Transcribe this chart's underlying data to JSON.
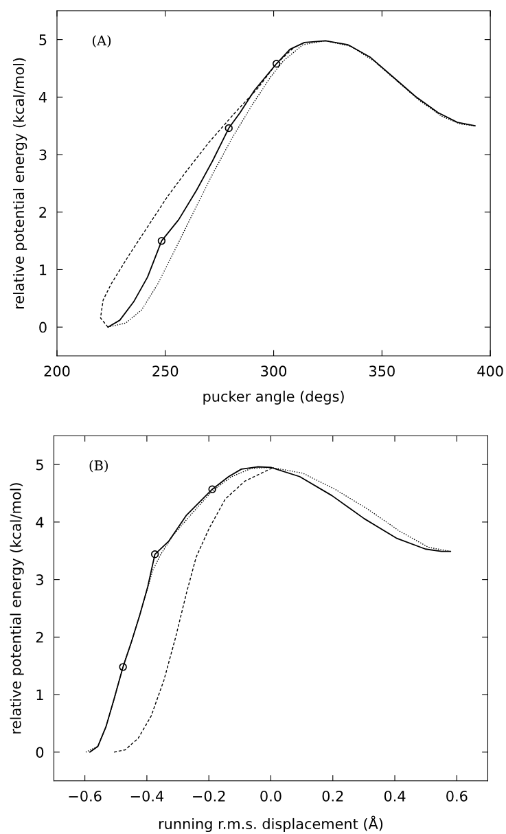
{
  "chart_data": [
    {
      "type": "line",
      "xlabel": "pucker angle (degs)",
      "ylabel": "relative potential energy (kcal/mol)",
      "annotations": [
        "(A)"
      ],
      "xlim": [
        200,
        400
      ],
      "ylim": [
        -0.5,
        5.5
      ],
      "xticks": [
        200,
        250,
        300,
        350,
        400
      ],
      "yticks": [
        0,
        1,
        2,
        3,
        4,
        5
      ],
      "grid": false,
      "series": [
        {
          "line_style": "solid",
          "color": "#000000",
          "x": [
            223.5,
            229,
            235.4,
            241.8,
            248.3,
            256.2,
            264.4,
            271.8,
            279.3,
            284.5,
            291.2,
            301.3,
            307.5,
            314.2,
            323.9,
            334.3,
            344.7,
            355.1,
            365.5,
            375.9,
            384.8,
            393.0
          ],
          "values": [
            0,
            0.12,
            0.44,
            0.87,
            1.5,
            1.87,
            2.38,
            2.89,
            3.46,
            3.73,
            4.12,
            4.58,
            4.83,
            4.95,
            4.98,
            4.91,
            4.69,
            4.35,
            4.01,
            3.73,
            3.56,
            3.5
          ]
        },
        {
          "line_style": "dashed",
          "color": "#000000",
          "x": [
            223.5,
            220.1,
            221.3,
            225,
            233.2,
            242.1,
            251,
            259.9,
            270.3,
            282.2,
            292.6,
            301.3,
            309
          ],
          "values": [
            0,
            0.16,
            0.47,
            0.75,
            1.25,
            1.76,
            2.27,
            2.72,
            3.22,
            3.73,
            4.15,
            4.58,
            4.85
          ]
        },
        {
          "line_style": "dotted",
          "color": "#000000",
          "x": [
            223.5,
            231.7,
            239.1,
            246.5,
            254,
            262.9,
            271.8,
            280.7,
            289.7,
            298.6,
            304.5,
            313.5,
            323.9,
            335.8,
            346.2,
            356.6,
            367,
            377.4,
            386.3,
            393
          ],
          "values": [
            0,
            0.07,
            0.3,
            0.75,
            1.31,
            1.99,
            2.66,
            3.28,
            3.84,
            4.35,
            4.63,
            4.91,
            4.98,
            4.88,
            4.63,
            4.29,
            3.95,
            3.67,
            3.53,
            3.5
          ]
        },
        {
          "type": "scatter",
          "marker": "circle",
          "color": "#000000",
          "x": [
            248.3,
            279.3,
            301.3
          ],
          "values": [
            1.5,
            3.46,
            4.58
          ]
        }
      ]
    },
    {
      "type": "line",
      "xlabel": "running r.m.s. displacement (Å)",
      "ylabel": "relative potential energy (kcal/mol)",
      "annotations": [
        "(B)"
      ],
      "xlim": [
        -0.7,
        0.7
      ],
      "ylim": [
        -0.5,
        5.5
      ],
      "xticks": [
        {
          "value": -0.6,
          "label": "−0.6"
        },
        {
          "value": -0.4,
          "label": "−0.4"
        },
        {
          "value": -0.2,
          "label": "−0.2"
        },
        {
          "value": 0,
          "label": "0.0"
        },
        {
          "value": 0.2,
          "label": "0.2"
        },
        {
          "value": 0.4,
          "label": "0.4"
        },
        {
          "value": 0.6,
          "label": "0.6"
        }
      ],
      "yticks": [
        0,
        1,
        2,
        3,
        4,
        5
      ],
      "grid": false,
      "series": [
        {
          "line_style": "solid",
          "color": "#000000",
          "x": [
            -0.584,
            -0.558,
            -0.532,
            -0.506,
            -0.477,
            -0.449,
            -0.423,
            -0.397,
            -0.374,
            -0.329,
            -0.272,
            -0.189,
            -0.136,
            -0.095,
            -0.043,
            0,
            0.093,
            0.197,
            0.301,
            0.405,
            0.499,
            0.551,
            0.58
          ],
          "values": [
            0,
            0.1,
            0.44,
            0.92,
            1.48,
            1.93,
            2.38,
            2.88,
            3.44,
            3.67,
            4.12,
            4.57,
            4.79,
            4.92,
            4.96,
            4.95,
            4.79,
            4.46,
            4.06,
            3.72,
            3.53,
            3.49,
            3.49
          ]
        },
        {
          "line_style": "dotted",
          "color": "#000000",
          "x": [
            -0.597,
            -0.558,
            -0.532,
            -0.506,
            -0.477,
            -0.449,
            -0.423,
            -0.381,
            -0.355,
            -0.314,
            -0.251,
            -0.189,
            -0.126,
            -0.064,
            0,
            0.103,
            0.207,
            0.311,
            0.416,
            0.509,
            0.58
          ],
          "values": [
            0,
            0.1,
            0.44,
            0.92,
            1.48,
            1.93,
            2.38,
            3.16,
            3.44,
            3.78,
            4.17,
            4.54,
            4.79,
            4.93,
            4.95,
            4.85,
            4.57,
            4.23,
            3.84,
            3.56,
            3.49
          ]
        },
        {
          "line_style": "dashed",
          "color": "#000000",
          "x": [
            -0.506,
            -0.47,
            -0.428,
            -0.386,
            -0.345,
            -0.308,
            -0.272,
            -0.241,
            -0.199,
            -0.147,
            -0.084,
            -0.011,
            0.009
          ],
          "values": [
            0,
            0.04,
            0.24,
            0.63,
            1.25,
            1.98,
            2.77,
            3.39,
            3.89,
            4.4,
            4.71,
            4.9,
            4.95
          ]
        },
        {
          "type": "scatter",
          "marker": "circle",
          "color": "#000000",
          "x": [
            -0.477,
            -0.374,
            -0.189
          ],
          "values": [
            1.48,
            3.44,
            4.57
          ]
        }
      ]
    }
  ]
}
